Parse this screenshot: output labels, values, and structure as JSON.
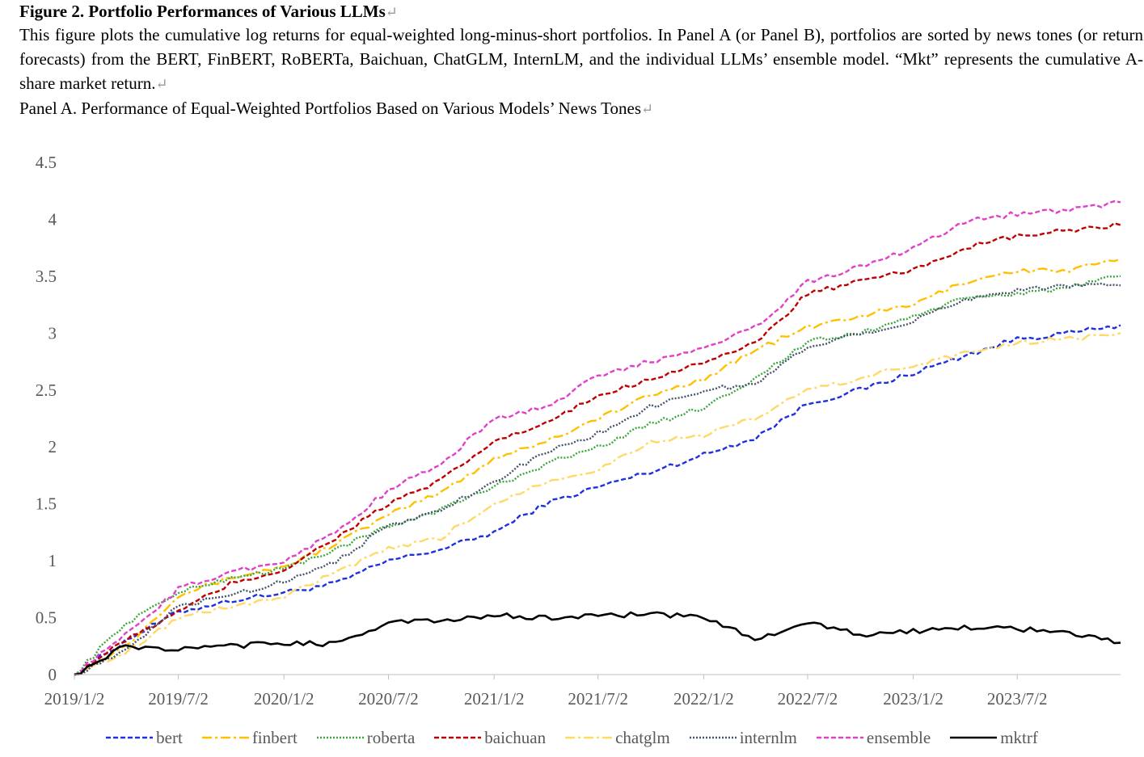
{
  "caption": {
    "title": "Figure 2. Portfolio Performances of Various LLMs",
    "body": "This figure plots the cumulative log returns for equal-weighted long-minus-short portfolios. In Panel A (or Panel B), portfolios are sorted by news tones (or return forecasts) from the BERT, FinBERT, RoBERTa, Baichuan, ChatGLM, InternLM, and the individual LLMs’ ensemble model. “Mkt” represents the cumulative A-share market return.",
    "panel": "Panel A. Performance of Equal-Weighted Portfolios Based on Various Models’ News Tones",
    "para_mark": "↵"
  },
  "chart_data": {
    "type": "line",
    "title": "",
    "xlabel": "",
    "ylabel": "",
    "ylim": [
      0,
      4.5
    ],
    "yticks": [
      "0",
      "0.5",
      "1",
      "1.5",
      "2",
      "2.5",
      "3",
      "3.5",
      "4",
      "4.5"
    ],
    "xticks": [
      "2019/1/2",
      "2019/7/2",
      "2020/1/2",
      "2020/7/2",
      "2021/1/2",
      "2021/7/2",
      "2022/1/2",
      "2022/7/2",
      "2023/1/2",
      "2023/7/2"
    ],
    "x_range": [
      "2019/1/2",
      "2023/12/29"
    ],
    "grid": false,
    "legend_position": "bottom",
    "x": [
      "2019/1/2",
      "2019/4/1",
      "2019/7/2",
      "2019/10/1",
      "2020/1/2",
      "2020/4/1",
      "2020/7/2",
      "2020/10/1",
      "2021/1/2",
      "2021/4/1",
      "2021/7/2",
      "2021/10/1",
      "2022/1/2",
      "2022/4/1",
      "2022/7/2",
      "2022/10/1",
      "2023/1/2",
      "2023/4/1",
      "2023/7/2",
      "2023/10/1",
      "2023/12/29"
    ],
    "series": [
      {
        "name": "bert",
        "color": "#1f30e0",
        "dash": "6,3",
        "values": [
          0.0,
          0.3,
          0.55,
          0.65,
          0.72,
          0.8,
          1.0,
          1.1,
          1.25,
          1.5,
          1.65,
          1.78,
          1.93,
          2.08,
          2.38,
          2.5,
          2.65,
          2.8,
          2.95,
          3.0,
          3.07
        ]
      },
      {
        "name": "finbert",
        "color": "#ffc000",
        "dash": "12,4,3,4",
        "values": [
          0.0,
          0.25,
          0.7,
          0.85,
          0.95,
          1.15,
          1.4,
          1.6,
          1.9,
          2.05,
          2.25,
          2.45,
          2.6,
          2.85,
          3.05,
          3.15,
          3.25,
          3.45,
          3.55,
          3.55,
          3.65
        ]
      },
      {
        "name": "roberta",
        "color": "#3ca63c",
        "dash": "2,2",
        "values": [
          0.0,
          0.45,
          0.72,
          0.85,
          0.93,
          1.1,
          1.3,
          1.45,
          1.65,
          1.85,
          2.0,
          2.2,
          2.35,
          2.6,
          2.92,
          3.0,
          3.15,
          3.3,
          3.35,
          3.4,
          3.5
        ]
      },
      {
        "name": "baichuan",
        "color": "#c00000",
        "dash": "6,3",
        "values": [
          0.0,
          0.3,
          0.55,
          0.8,
          0.92,
          1.2,
          1.5,
          1.7,
          2.05,
          2.2,
          2.45,
          2.6,
          2.75,
          2.9,
          3.35,
          3.45,
          3.55,
          3.75,
          3.85,
          3.9,
          3.95
        ]
      },
      {
        "name": "chatglm",
        "color": "#ffd966",
        "dash": "12,4,3,4",
        "values": [
          0.0,
          0.2,
          0.5,
          0.6,
          0.68,
          0.9,
          1.1,
          1.2,
          1.5,
          1.7,
          1.8,
          2.05,
          2.1,
          2.25,
          2.5,
          2.6,
          2.72,
          2.82,
          2.92,
          2.95,
          3.0
        ]
      },
      {
        "name": "internlm",
        "color": "#44546a",
        "dash": "2,2",
        "values": [
          0.0,
          0.2,
          0.6,
          0.7,
          0.82,
          1.0,
          1.3,
          1.45,
          1.7,
          1.95,
          2.12,
          2.35,
          2.5,
          2.55,
          2.88,
          3.0,
          3.1,
          3.3,
          3.38,
          3.42,
          3.42
        ]
      },
      {
        "name": "ensemble",
        "color": "#e040c8",
        "dash": "6,3",
        "values": [
          0.0,
          0.35,
          0.75,
          0.9,
          1.0,
          1.25,
          1.62,
          1.85,
          2.25,
          2.35,
          2.62,
          2.75,
          2.88,
          3.05,
          3.45,
          3.58,
          3.75,
          3.98,
          4.05,
          4.08,
          4.15
        ]
      },
      {
        "name": "mktrf",
        "color": "#000000",
        "dash": "",
        "values": [
          0.0,
          0.25,
          0.22,
          0.25,
          0.28,
          0.27,
          0.46,
          0.47,
          0.52,
          0.5,
          0.52,
          0.53,
          0.5,
          0.32,
          0.45,
          0.35,
          0.38,
          0.42,
          0.4,
          0.37,
          0.28
        ]
      }
    ]
  }
}
